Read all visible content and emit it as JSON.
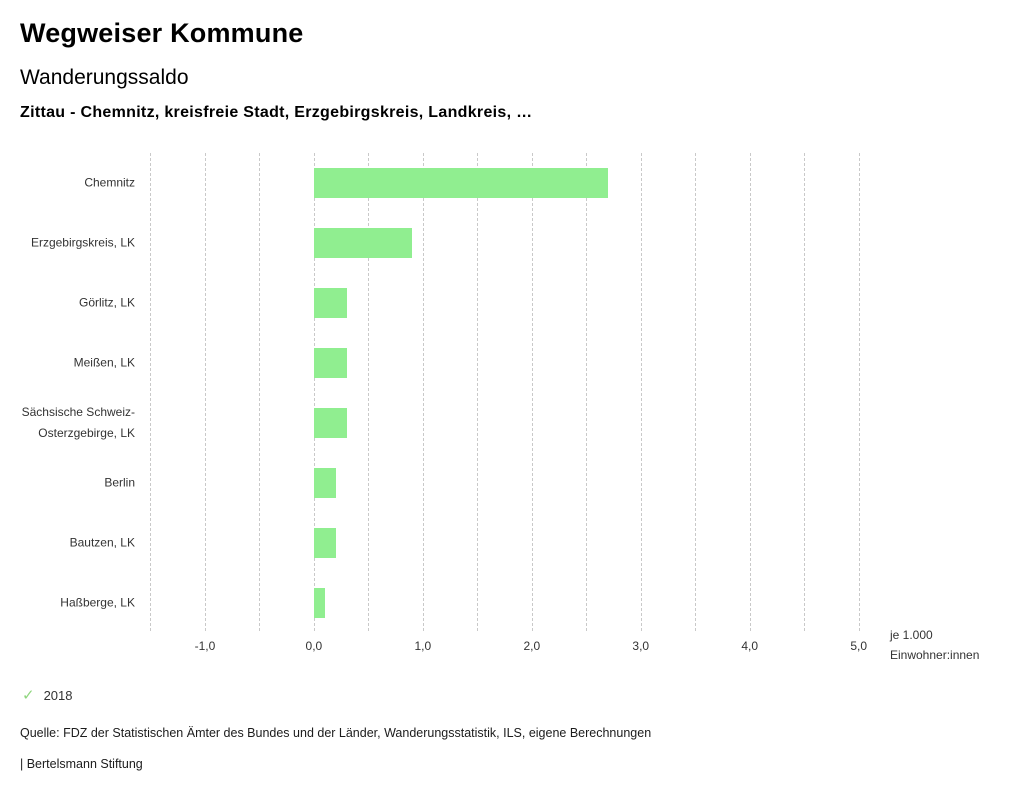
{
  "header": {
    "title": "Wegweiser Kommune",
    "subtitle": "Wanderungssaldo",
    "selection": "Zittau - Chemnitz, kreisfreie Stadt, Erzgebirgskreis, Landkreis, …"
  },
  "chart_data": {
    "type": "bar",
    "orientation": "horizontal",
    "categories": [
      "Chemnitz",
      "Erzgebirgskreis, LK",
      "Görlitz, LK",
      "Meißen, LK",
      "Sächsische Schweiz-Osterzgebirge, LK",
      "Berlin",
      "Bautzen, LK",
      "Haßberge, LK"
    ],
    "series": [
      {
        "name": "2018",
        "values": [
          2.7,
          0.9,
          0.3,
          0.3,
          0.3,
          0.2,
          0.2,
          0.1
        ]
      }
    ],
    "title": "Wanderungssaldo",
    "xlabel_lines": [
      "je 1.000",
      "Einwohner:innen"
    ],
    "ylabel": "",
    "xlim": [
      -1.55,
      5.15
    ],
    "xticks": [
      -1,
      0,
      1,
      2,
      3,
      4,
      5
    ],
    "xtick_labels": [
      "-1,0",
      "0,0",
      "1,0",
      "2,0",
      "3,0",
      "4,0",
      "5,0"
    ],
    "grid": {
      "visible": true,
      "style": "dashed-vertical",
      "start": -1.5,
      "end": 5.0,
      "step": 0.5
    },
    "bar_color": "#90ee90",
    "legend_position": "bottom-left"
  },
  "legend": {
    "check_color": "#90d67f",
    "label": "2018"
  },
  "footer": {
    "source": "Quelle: FDZ der Statistischen Ämter des Bundes und der Länder, Wanderungsstatistik, ILS, eigene Berechnungen",
    "branding": "| Bertelsmann Stiftung"
  }
}
